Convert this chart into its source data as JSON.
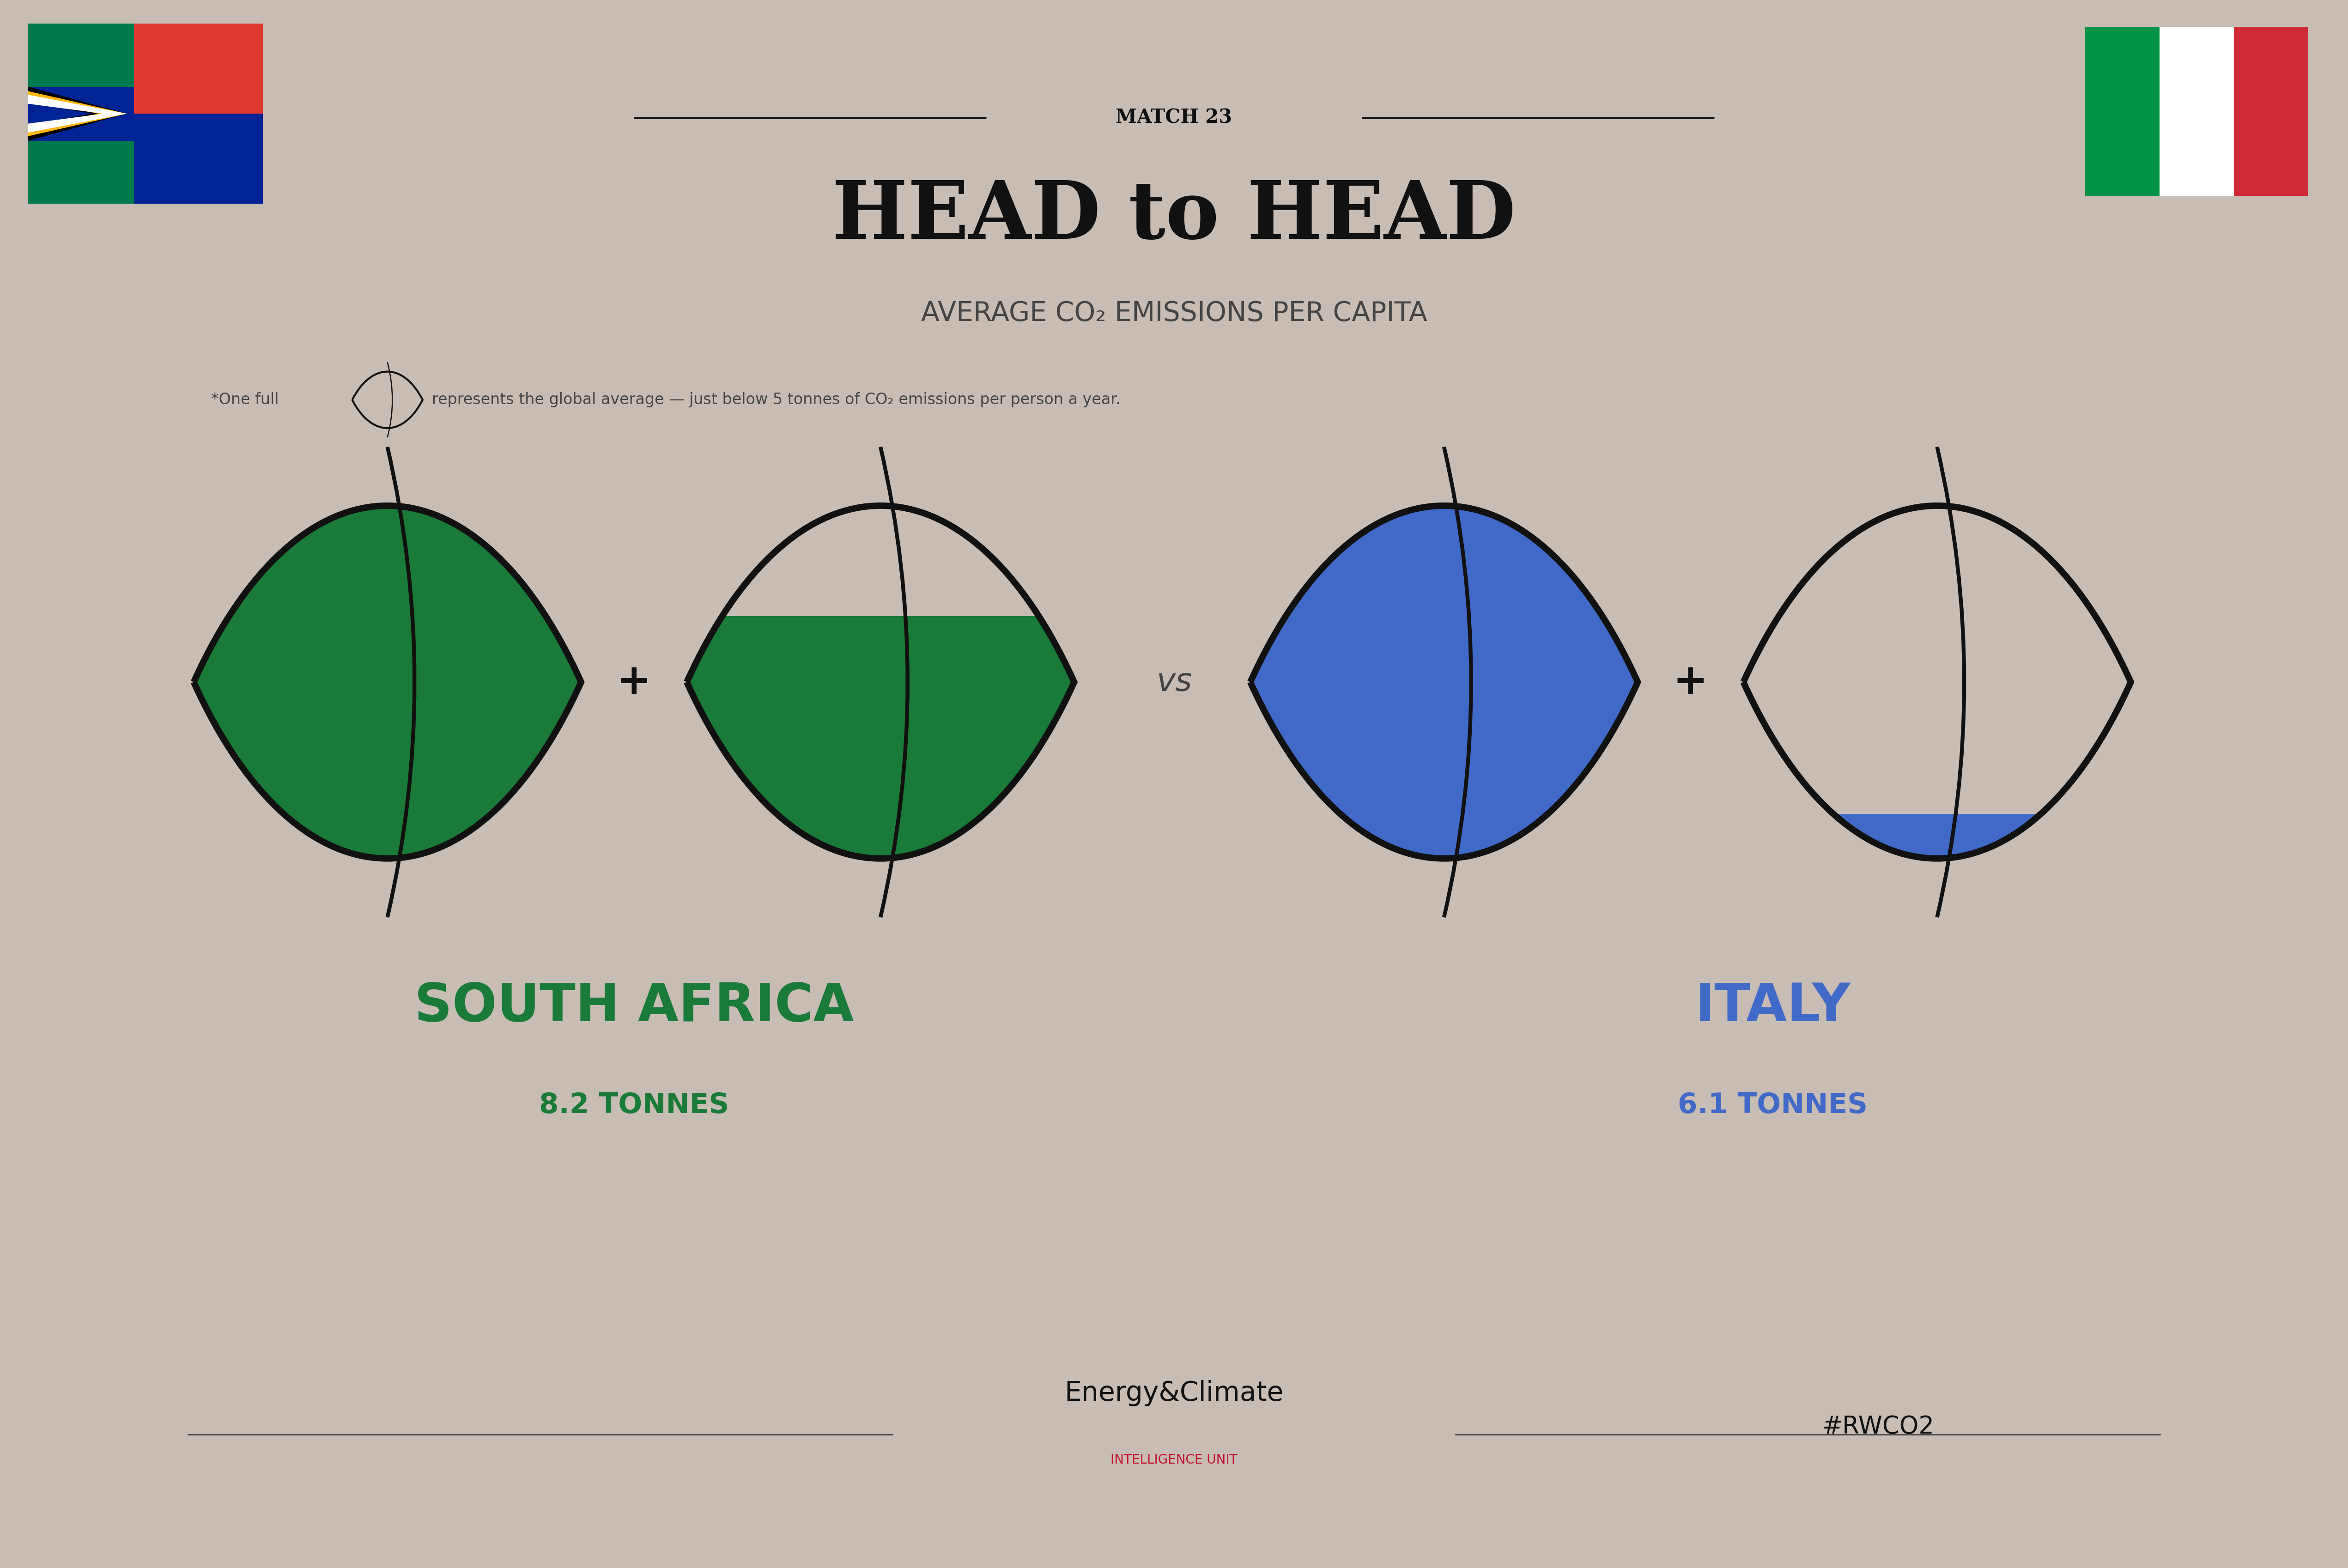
{
  "bg_color": "#c8bdb4",
  "title_match": "MATCH 23",
  "title_main": "HEAD to HEAD",
  "title_sub": "AVERAGE CO₂ EMISSIONS PER CAPITA",
  "note_part1": "*One full",
  "note_part2": "represents the global average — just below 5 tonnes of CO₂ emissions per person a year.",
  "sa_label": "SOUTH AFRICA",
  "sa_tonnes": "8.2 TONNES",
  "sa_color": "#1a7a3a",
  "sa_value": 8.2,
  "italy_label": "ITALY",
  "italy_tonnes": "6.1 TONNES",
  "italy_color": "#4169c8",
  "italy_value": 6.1,
  "global_avg": 5.0,
  "vs_text": "vs",
  "footer_center_main": "Energy&Climate",
  "footer_center_sub": "INTELLIGENCE UNIT",
  "footer_right": "#RWCO2",
  "line_color": "#2a2a2a"
}
